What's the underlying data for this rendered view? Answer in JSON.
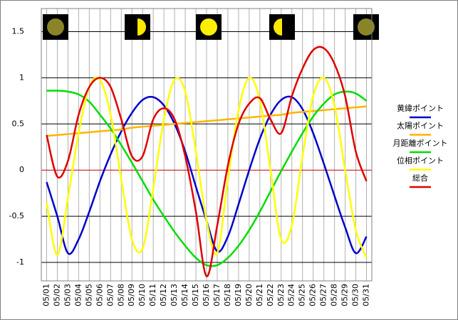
{
  "chart_data": {
    "type": "line",
    "categories": [
      "05/01",
      "05/02",
      "05/03",
      "05/04",
      "05/05",
      "05/06",
      "05/07",
      "05/08",
      "05/09",
      "05/10",
      "05/11",
      "05/12",
      "05/13",
      "05/14",
      "05/15",
      "05/16",
      "05/17",
      "05/18",
      "05/19",
      "05/20",
      "05/21",
      "05/22",
      "05/23",
      "05/24",
      "05/25",
      "05/26",
      "05/27",
      "05/28",
      "05/29",
      "05/30",
      "05/31"
    ],
    "ylim": [
      -1.2,
      1.75
    ],
    "yticks": [
      1.5,
      1,
      0.5,
      0,
      -0.5,
      -1
    ],
    "grid": true,
    "zero_line_color": "#c00000",
    "legend": "right",
    "series": [
      {
        "name": "黄緯ポイント",
        "color": "#0000cc",
        "values": [
          -0.13,
          -0.5,
          -0.9,
          -0.75,
          -0.45,
          -0.12,
          0.17,
          0.42,
          0.62,
          0.76,
          0.79,
          0.7,
          0.5,
          0.2,
          -0.18,
          -0.55,
          -0.88,
          -0.72,
          -0.37,
          0.0,
          0.34,
          0.6,
          0.76,
          0.79,
          0.66,
          0.4,
          0.07,
          -0.28,
          -0.62,
          -0.9,
          -0.72
        ]
      },
      {
        "name": "太陽ポイント",
        "color": "#ffb400",
        "values": [
          0.37,
          0.38,
          0.39,
          0.4,
          0.41,
          0.42,
          0.43,
          0.44,
          0.46,
          0.47,
          0.48,
          0.49,
          0.5,
          0.51,
          0.52,
          0.53,
          0.54,
          0.55,
          0.56,
          0.57,
          0.58,
          0.59,
          0.6,
          0.62,
          0.63,
          0.64,
          0.65,
          0.66,
          0.67,
          0.68,
          0.69
        ]
      },
      {
        "name": "月距離ポイント",
        "color": "#00dd00",
        "values": [
          0.86,
          0.86,
          0.85,
          0.82,
          0.74,
          0.6,
          0.45,
          0.27,
          0.08,
          -0.12,
          -0.32,
          -0.5,
          -0.67,
          -0.82,
          -0.95,
          -1.03,
          -1.03,
          -0.95,
          -0.82,
          -0.65,
          -0.45,
          -0.23,
          -0.01,
          0.2,
          0.4,
          0.58,
          0.72,
          0.82,
          0.85,
          0.83,
          0.75
        ]
      },
      {
        "name": "位相ポイント",
        "color": "#ffff00",
        "values": [
          -0.35,
          -0.92,
          -0.3,
          0.4,
          0.9,
          0.98,
          0.6,
          -0.1,
          -0.75,
          -0.85,
          -0.2,
          0.55,
          0.98,
          0.85,
          0.2,
          -0.55,
          -0.9,
          -0.1,
          0.65,
          1.0,
          0.75,
          0.0,
          -0.75,
          -0.6,
          0.15,
          0.8,
          1.0,
          0.7,
          0.0,
          -0.65,
          -0.95
        ]
      },
      {
        "name": "総合",
        "color": "#e00000",
        "values": [
          0.38,
          -0.07,
          0.1,
          0.6,
          0.9,
          1.0,
          0.9,
          0.55,
          0.15,
          0.15,
          0.55,
          0.67,
          0.55,
          0.15,
          -0.45,
          -1.15,
          -0.6,
          0.05,
          0.5,
          0.72,
          0.78,
          0.55,
          0.4,
          0.8,
          1.1,
          1.3,
          1.32,
          1.15,
          0.8,
          0.2,
          -0.12
        ]
      }
    ]
  }
}
